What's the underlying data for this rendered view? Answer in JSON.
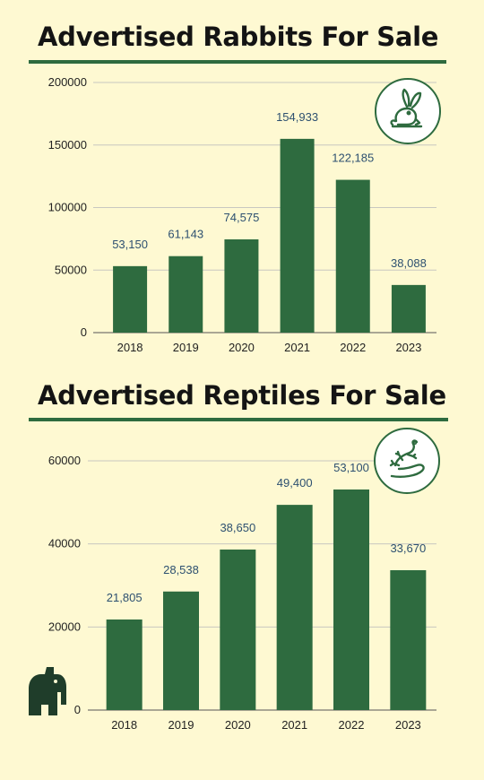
{
  "chart_data": [
    {
      "type": "bar",
      "title": "Advertised Rabbits For Sale",
      "icon": "rabbit-icon",
      "categories": [
        "2018",
        "2019",
        "2020",
        "2021",
        "2022",
        "2023"
      ],
      "values": [
        53150,
        61143,
        74575,
        154933,
        122185,
        38088
      ],
      "data_labels": [
        "53,150",
        "61,143",
        "74,575",
        "154,933",
        "122,185",
        "38,088"
      ],
      "y_ticks": [
        "0",
        "50000",
        "100000",
        "150000",
        "200000"
      ],
      "ylim": [
        0,
        200000
      ],
      "grid": true
    },
    {
      "type": "bar",
      "title": "Advertised Reptiles For Sale",
      "icon": "lizard-icon",
      "categories": [
        "2018",
        "2019",
        "2020",
        "2021",
        "2022",
        "2023"
      ],
      "values": [
        21805,
        28538,
        38650,
        49400,
        53100,
        33670
      ],
      "data_labels": [
        "21,805",
        "28,538",
        "38,650",
        "49,400",
        "53,100",
        "33,670"
      ],
      "y_ticks": [
        "0",
        "20000",
        "40000",
        "60000"
      ],
      "ylim": [
        0,
        60000
      ],
      "grid": true
    }
  ],
  "colors": {
    "background": "#fef9d2",
    "bar": "#2e6b3f",
    "data_label": "#2d5070",
    "title": "#141414",
    "grid": "#c8c8c0"
  },
  "footer": {
    "icon": "elephant-logo-icon"
  }
}
